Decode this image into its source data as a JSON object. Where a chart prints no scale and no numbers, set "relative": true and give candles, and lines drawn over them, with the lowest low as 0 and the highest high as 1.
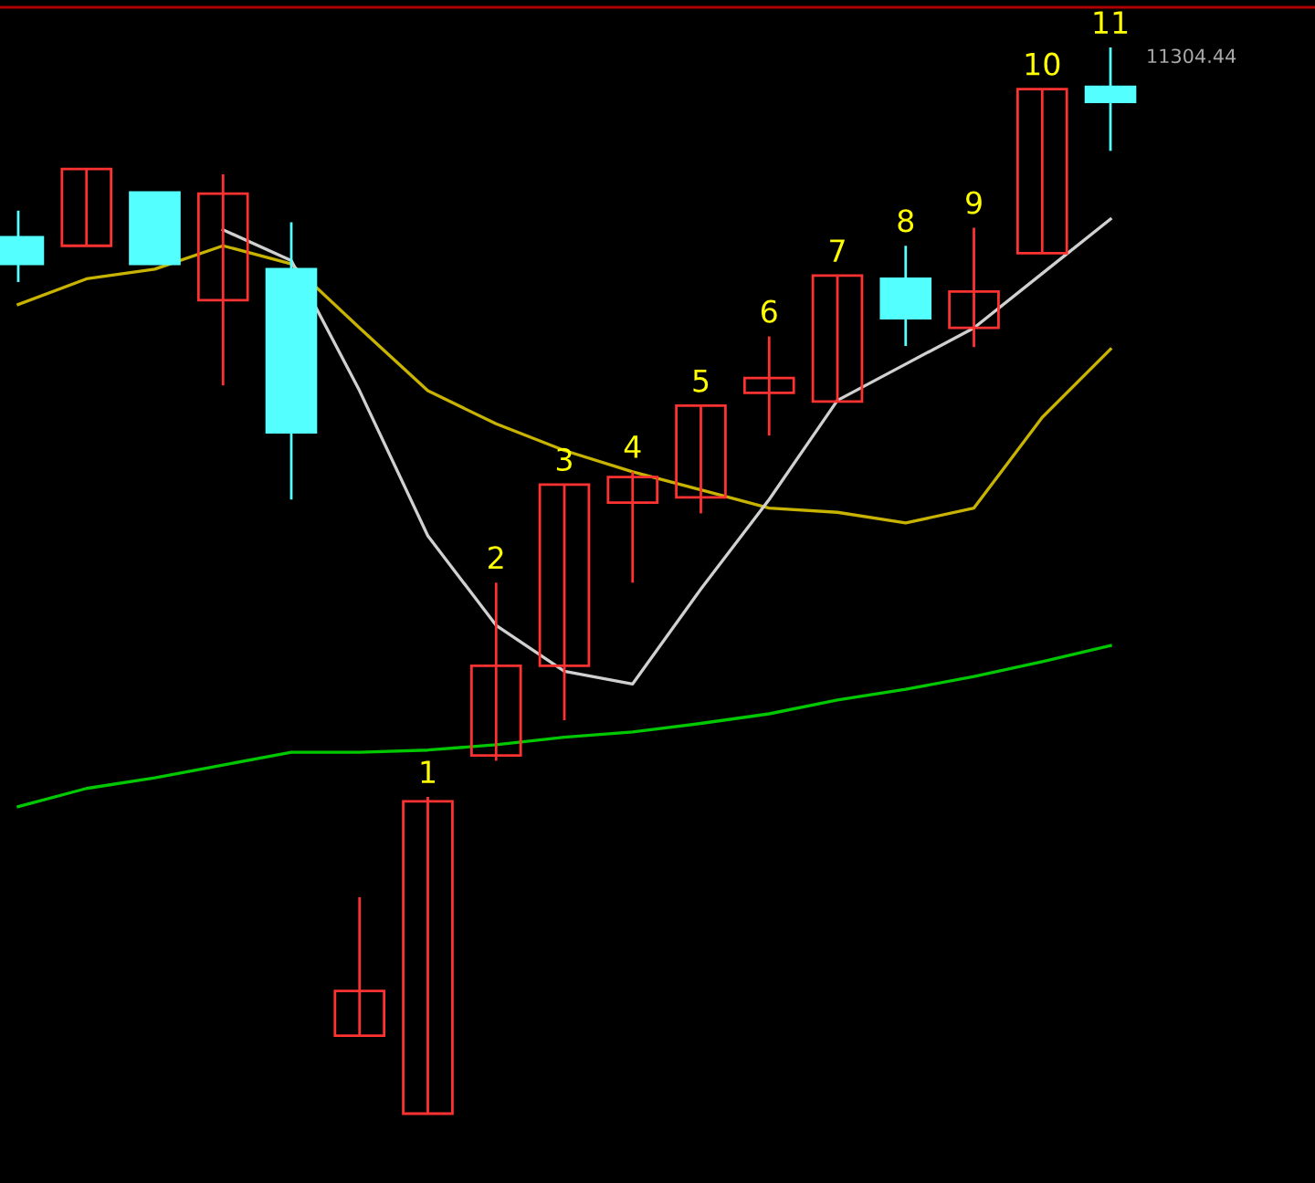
{
  "chart_data": {
    "type": "candlestick",
    "relative": true,
    "ohlc": [
      [
        0.822,
        0.847,
        0.78,
        0.797
      ],
      [
        0.814,
        0.886,
        0.814,
        0.886
      ],
      [
        0.864,
        0.864,
        0.797,
        0.797
      ],
      [
        0.763,
        0.881,
        0.683,
        0.863
      ],
      [
        0.792,
        0.836,
        0.576,
        0.639
      ],
      [
        0.073,
        0.203,
        0.073,
        0.115
      ],
      [
        0,
        0.297,
        0,
        0.293
      ],
      [
        0.336,
        0.498,
        0.331,
        0.42
      ],
      [
        0.42,
        0.59,
        0.369,
        0.59
      ],
      [
        0.573,
        0.602,
        0.498,
        0.597
      ],
      [
        0.578,
        0.664,
        0.563,
        0.664
      ],
      [
        0.676,
        0.729,
        0.636,
        0.69
      ],
      [
        0.668,
        0.786,
        0.668,
        0.786
      ],
      [
        0.783,
        0.814,
        0.72,
        0.746
      ],
      [
        0.737,
        0.831,
        0.719,
        0.771
      ],
      [
        0.807,
        0.961,
        0.807,
        0.961
      ],
      [
        0.963,
        1,
        0.903,
        0.949
      ]
    ],
    "colors": [
      "#54ffff",
      "#ff3232",
      "#54ffff",
      "#ff3232",
      "#54ffff",
      "#ff3232",
      "#ff3232",
      "#ff3232",
      "#ff3232",
      "#ff3232",
      "#ff3232",
      "#ff3232",
      "#ff3232",
      "#54ffff",
      "#ff3232",
      "#ff3232",
      "#54ffff"
    ],
    "series": [
      {
        "type": "line",
        "color": "#c8b400",
        "values": [
          0.759,
          0.783,
          0.792,
          0.814,
          0.797,
          0.737,
          0.678,
          0.647,
          0.622,
          0.602,
          0.585,
          0.568,
          0.564,
          0.554,
          0.568,
          0.653,
          0.717
        ]
      },
      {
        "type": "line",
        "color": "#d0d0d0",
        "values": [
          null,
          null,
          null,
          0.829,
          0.8,
          0.678,
          0.542,
          0.458,
          0.415,
          0.403,
          0.492,
          0.576,
          0.669,
          0.703,
          0.737,
          0.788,
          0.839
        ]
      },
      {
        "type": "line",
        "color": "#00c800",
        "values": [
          0.288,
          0.305,
          0.315,
          0.327,
          0.339,
          0.339,
          0.341,
          0.346,
          0.353,
          0.358,
          0.366,
          0.375,
          0.388,
          0.398,
          0.41,
          0.424,
          0.439
        ]
      }
    ],
    "annotations": [
      "1",
      "2",
      "3",
      "4",
      "5",
      "6",
      "7",
      "8",
      "9",
      "10",
      "11",
      "11304.44"
    ]
  }
}
